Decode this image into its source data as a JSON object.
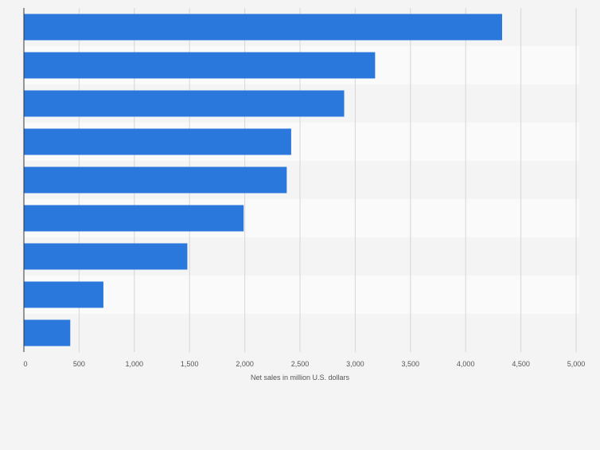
{
  "chart_data": {
    "type": "bar",
    "orientation": "horizontal",
    "categories": [
      "",
      "",
      "",
      "",
      "",
      "",
      "",
      "",
      ""
    ],
    "values": [
      4330,
      3180,
      2900,
      2420,
      2380,
      1990,
      1480,
      720,
      420
    ],
    "xlabel": "Net sales in million U.S. dollars",
    "ylabel": "",
    "xlim": [
      0,
      5000
    ],
    "xticks": [
      0,
      500,
      1000,
      1500,
      2000,
      2500,
      3000,
      3500,
      4000,
      4500,
      5000
    ],
    "xtick_labels": [
      "0",
      "500",
      "1,000",
      "1,500",
      "2,000",
      "2,500",
      "3,000",
      "3,500",
      "4,000",
      "4,500",
      "5,000"
    ],
    "grid": true,
    "colors": {
      "bar": "#2a78dc",
      "band_dark": "#f4f4f4",
      "band_light": "#fafafa",
      "gridline": "#d6d6d6",
      "axis": "#333333",
      "tick_text": "#555555"
    }
  }
}
